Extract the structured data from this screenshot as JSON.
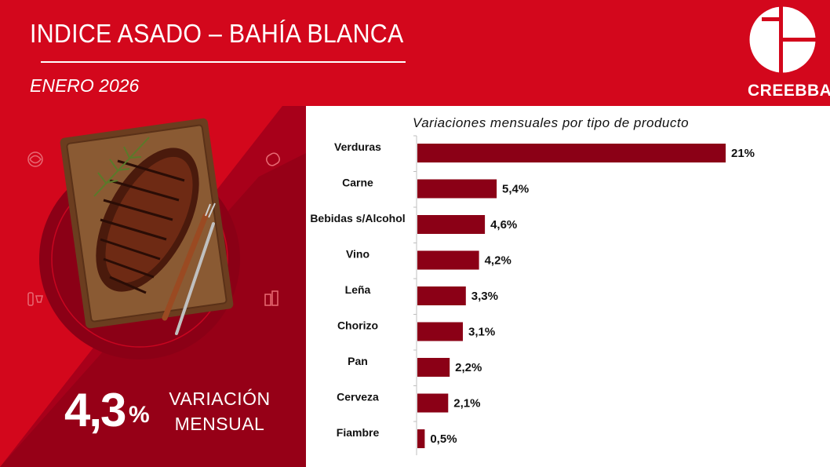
{
  "header": {
    "title": "INDICE ASADO – BAHÍA BLANCA",
    "subtitle": "ENERO 2026"
  },
  "logo": {
    "text": "CREEBBA",
    "icon": "creebba-logo-icon"
  },
  "summary": {
    "value": "4,3",
    "unit": "%",
    "label_line1": "VARIACIÓN",
    "label_line2": "MENSUAL"
  },
  "decor_icons": [
    "leaf-icon",
    "sausage-icon",
    "bottle-glass-icon",
    "drinks-icon"
  ],
  "colors": {
    "background": "#d3071c",
    "dark_red": "#8b0016",
    "bar": "#8b0016",
    "panel": "#ffffff"
  },
  "chart_data": {
    "type": "bar",
    "orientation": "horizontal",
    "title": "Variaciones mensuales por tipo de producto",
    "categories": [
      "Verduras",
      "Carne",
      "Bebidas s/Alcohol",
      "Vino",
      "Leña",
      "Chorizo",
      "Pan",
      "Cerveza",
      "Fiambre"
    ],
    "values": [
      21,
      5.4,
      4.6,
      4.2,
      3.3,
      3.1,
      2.2,
      2.1,
      0.5
    ],
    "labels": [
      "21%",
      "5,4%",
      "4,6%",
      "4,2%",
      "3,3%",
      "3,1%",
      "2,2%",
      "2,1%",
      "0,5%"
    ],
    "xlim": [
      0,
      21
    ],
    "grid": false,
    "legend": "none"
  }
}
